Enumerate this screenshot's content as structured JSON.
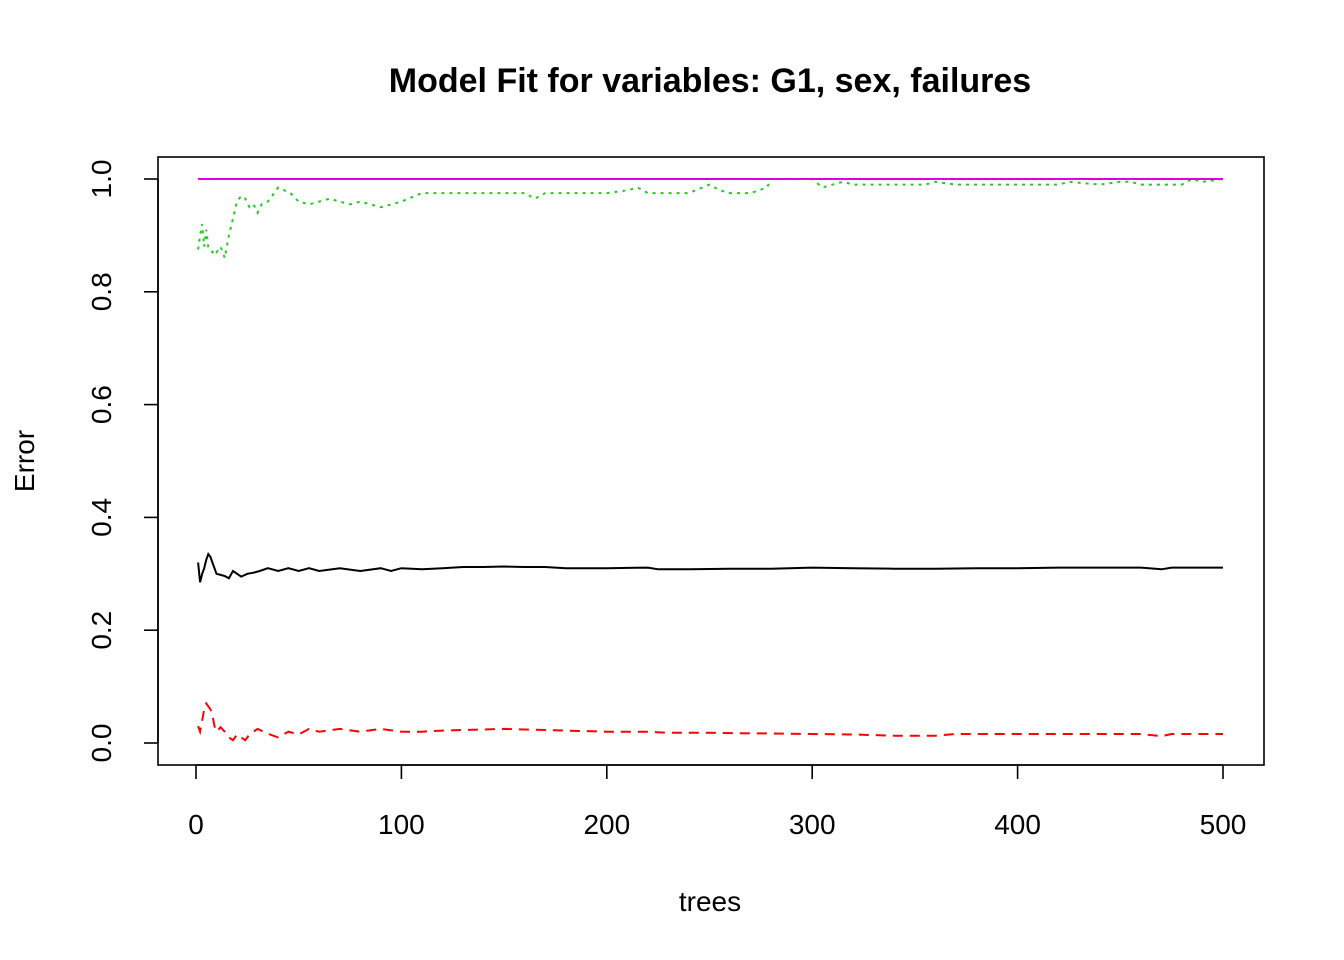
{
  "chart_data": {
    "type": "line",
    "title": "Model Fit for variables: G1, sex, failures",
    "xlabel": "trees",
    "ylabel": "Error",
    "xlim": [
      0,
      500
    ],
    "ylim": [
      0,
      1
    ],
    "x_ticks": [
      0,
      100,
      200,
      300,
      400,
      500
    ],
    "y_ticks": [
      0.0,
      0.2,
      0.4,
      0.6,
      0.8,
      1.0
    ],
    "y_tick_labels": [
      "0.0",
      "0.2",
      "0.4",
      "0.6",
      "0.8",
      "1.0"
    ],
    "grid": false,
    "series": [
      {
        "color": "#000000",
        "dash": "solid",
        "x": [
          1,
          2,
          3,
          4,
          5,
          6,
          7,
          8,
          9,
          10,
          12,
          14,
          16,
          18,
          20,
          22,
          25,
          28,
          31,
          35,
          40,
          45,
          50,
          55,
          60,
          70,
          80,
          90,
          95,
          100,
          110,
          120,
          130,
          140,
          150,
          160,
          170,
          180,
          200,
          220,
          225,
          240,
          260,
          280,
          300,
          320,
          340,
          360,
          380,
          400,
          420,
          440,
          460,
          470,
          475,
          480,
          490,
          500
        ],
        "y": [
          0.32,
          0.285,
          0.3,
          0.31,
          0.325,
          0.335,
          0.33,
          0.32,
          0.31,
          0.3,
          0.298,
          0.296,
          0.292,
          0.305,
          0.3,
          0.295,
          0.3,
          0.302,
          0.305,
          0.31,
          0.305,
          0.31,
          0.305,
          0.31,
          0.305,
          0.31,
          0.305,
          0.31,
          0.305,
          0.31,
          0.308,
          0.31,
          0.312,
          0.312,
          0.313,
          0.312,
          0.312,
          0.31,
          0.31,
          0.311,
          0.308,
          0.308,
          0.309,
          0.309,
          0.311,
          0.31,
          0.309,
          0.309,
          0.31,
          0.31,
          0.311,
          0.311,
          0.311,
          0.308,
          0.311,
          0.311,
          0.311,
          0.311
        ]
      },
      {
        "color": "#ff0000",
        "dash": "dashed",
        "x": [
          1,
          2,
          3,
          4,
          5,
          6,
          7,
          8,
          9,
          10,
          12,
          14,
          16,
          18,
          20,
          22,
          24,
          26,
          28,
          30,
          33,
          36,
          40,
          45,
          50,
          55,
          60,
          70,
          80,
          90,
          100,
          110,
          120,
          130,
          140,
          150,
          160,
          170,
          180,
          200,
          220,
          230,
          250,
          270,
          280,
          300,
          320,
          340,
          360,
          370,
          400,
          420,
          440,
          460,
          470,
          475,
          480,
          490,
          500
        ],
        "y": [
          0.03,
          0.02,
          0.04,
          0.06,
          0.07,
          0.065,
          0.06,
          0.05,
          0.03,
          0.02,
          0.028,
          0.02,
          0.01,
          0.005,
          0.015,
          0.01,
          0.005,
          0.015,
          0.02,
          0.025,
          0.02,
          0.015,
          0.01,
          0.02,
          0.015,
          0.025,
          0.02,
          0.025,
          0.02,
          0.025,
          0.02,
          0.02,
          0.022,
          0.023,
          0.024,
          0.025,
          0.024,
          0.023,
          0.022,
          0.02,
          0.02,
          0.018,
          0.018,
          0.017,
          0.017,
          0.016,
          0.015,
          0.013,
          0.013,
          0.016,
          0.016,
          0.016,
          0.016,
          0.016,
          0.012,
          0.016,
          0.016,
          0.016,
          0.016
        ]
      },
      {
        "color": "#22cc22",
        "dash": "dotted",
        "x": [
          1,
          2,
          3,
          4,
          5,
          6,
          7,
          8,
          9,
          10,
          12,
          14,
          16,
          18,
          20,
          22,
          24,
          26,
          28,
          30,
          32,
          35,
          38,
          40,
          43,
          46,
          50,
          55,
          60,
          65,
          70,
          75,
          80,
          85,
          90,
          95,
          100,
          110,
          120,
          140,
          160,
          165,
          170,
          180,
          200,
          210,
          215,
          220,
          240,
          250,
          255,
          260,
          270,
          278,
          280,
          300,
          305,
          310,
          315,
          320,
          330,
          340,
          355,
          360,
          370,
          400,
          420,
          425,
          440,
          450,
          455,
          460,
          470,
          480,
          485,
          490,
          500
        ],
        "y": [
          0.875,
          0.9,
          0.92,
          0.88,
          0.91,
          0.88,
          0.875,
          0.87,
          0.875,
          0.87,
          0.88,
          0.86,
          0.9,
          0.93,
          0.96,
          0.97,
          0.965,
          0.95,
          0.955,
          0.94,
          0.955,
          0.96,
          0.975,
          0.985,
          0.98,
          0.975,
          0.96,
          0.955,
          0.96,
          0.965,
          0.96,
          0.955,
          0.96,
          0.955,
          0.95,
          0.955,
          0.96,
          0.975,
          0.975,
          0.975,
          0.975,
          0.965,
          0.975,
          0.975,
          0.975,
          0.98,
          0.985,
          0.975,
          0.975,
          0.99,
          0.98,
          0.975,
          0.975,
          0.985,
          1.0,
          1.0,
          0.985,
          0.99,
          0.995,
          0.99,
          0.99,
          0.99,
          0.99,
          0.995,
          0.99,
          0.99,
          0.99,
          0.995,
          0.99,
          0.995,
          0.995,
          0.99,
          0.99,
          0.99,
          1.0,
          0.995,
          1.0
        ]
      },
      {
        "color": "#dd00dd",
        "dash": "solid",
        "x": [
          1,
          500
        ],
        "y": [
          1.0,
          1.0
        ]
      }
    ]
  }
}
